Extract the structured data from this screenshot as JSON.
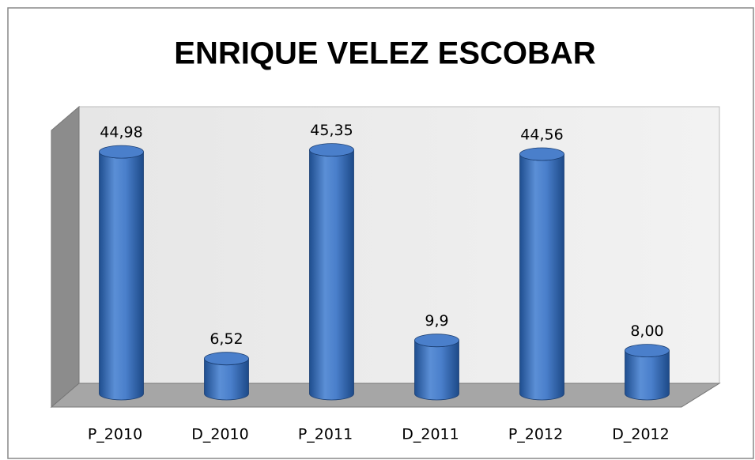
{
  "chart_data": {
    "type": "bar",
    "title": "ENRIQUE VELEZ ESCOBAR",
    "categories": [
      "P_2010",
      "D_2010",
      "P_2011",
      "D_2011",
      "P_2012",
      "D_2012"
    ],
    "values": [
      44.98,
      6.52,
      45.35,
      9.9,
      44.56,
      8
    ],
    "value_labels": [
      "44,98",
      "6,52",
      "45,35",
      "9,9",
      "44,56",
      "8,00"
    ],
    "color": "#4a7fcb",
    "ylim": [
      0,
      50
    ]
  }
}
